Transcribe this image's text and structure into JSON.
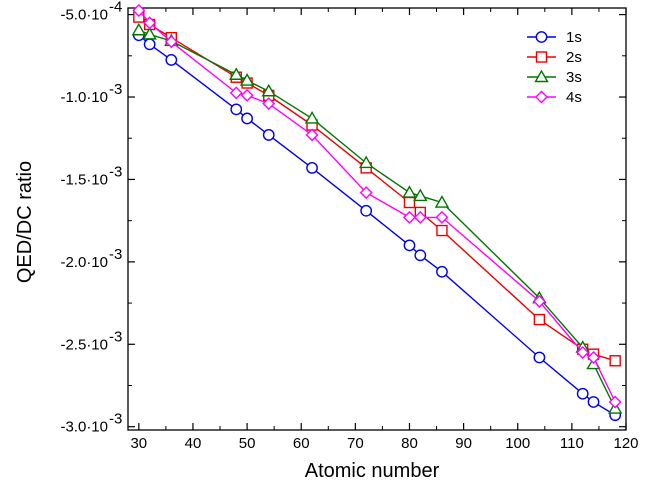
{
  "chart_data": {
    "type": "line",
    "xlabel": "Atomic number",
    "ylabel": "QED/DC ratio",
    "xlim": [
      28,
      120
    ],
    "ylim": [
      -0.00302,
      -0.00046
    ],
    "x_ticks": [
      30,
      40,
      50,
      60,
      70,
      80,
      90,
      100,
      110,
      120
    ],
    "y_ticks": [
      {
        "value": -0.0005,
        "mantissa": "-5.0·10",
        "exponent": "-4"
      },
      {
        "value": -0.001,
        "mantissa": "-1.0·10",
        "exponent": "-3"
      },
      {
        "value": -0.0015,
        "mantissa": "-1.5·10",
        "exponent": "-3"
      },
      {
        "value": -0.002,
        "mantissa": "-2.0·10",
        "exponent": "-3"
      },
      {
        "value": -0.0025,
        "mantissa": "-2.5·10",
        "exponent": "-3"
      },
      {
        "value": -0.003,
        "mantissa": "-3.0·10",
        "exponent": "-3"
      }
    ],
    "legend_position": "top-right",
    "series": [
      {
        "name": "1s",
        "color": "#0000ee",
        "marker": "circle",
        "x": [
          30,
          32,
          36,
          48,
          50,
          54,
          62,
          72,
          80,
          82,
          86,
          104,
          112,
          114,
          118
        ],
        "y": [
          -0.000625,
          -0.00068,
          -0.000775,
          -0.001075,
          -0.00113,
          -0.00123,
          -0.00143,
          -0.00169,
          -0.0019,
          -0.00196,
          -0.00206,
          -0.00258,
          -0.0028,
          -0.00285,
          -0.00293
        ]
      },
      {
        "name": "2s",
        "color": "#ee0000",
        "marker": "square",
        "x": [
          30,
          32,
          36,
          48,
          50,
          54,
          62,
          72,
          80,
          82,
          86,
          104,
          112,
          114,
          118
        ],
        "y": [
          -0.000515,
          -0.00056,
          -0.00064,
          -0.00088,
          -0.000915,
          -0.00099,
          -0.00117,
          -0.00143,
          -0.00164,
          -0.0017,
          -0.00181,
          -0.00235,
          -0.00253,
          -0.00256,
          -0.0026
        ]
      },
      {
        "name": "3s",
        "color": "#007700",
        "marker": "triangle",
        "x": [
          30,
          32,
          36,
          48,
          50,
          54,
          62,
          72,
          80,
          82,
          86,
          104,
          112,
          114,
          118
        ],
        "y": [
          -0.000595,
          -0.00062,
          -0.00066,
          -0.000865,
          -0.0009,
          -0.000965,
          -0.00113,
          -0.0014,
          -0.00158,
          -0.0016,
          -0.00164,
          -0.00222,
          -0.00252,
          -0.00262,
          -0.00289
        ]
      },
      {
        "name": "4s",
        "color": "#ff00ff",
        "marker": "diamond",
        "x": [
          30,
          32,
          36,
          48,
          50,
          54,
          62,
          72,
          80,
          82,
          86,
          104,
          112,
          114,
          118
        ],
        "y": [
          -0.000475,
          -0.00055,
          -0.000665,
          -0.000975,
          -0.00099,
          -0.00104,
          -0.00123,
          -0.00158,
          -0.00173,
          -0.00173,
          -0.00173,
          -0.00224,
          -0.00255,
          -0.00258,
          -0.00285
        ]
      }
    ]
  }
}
